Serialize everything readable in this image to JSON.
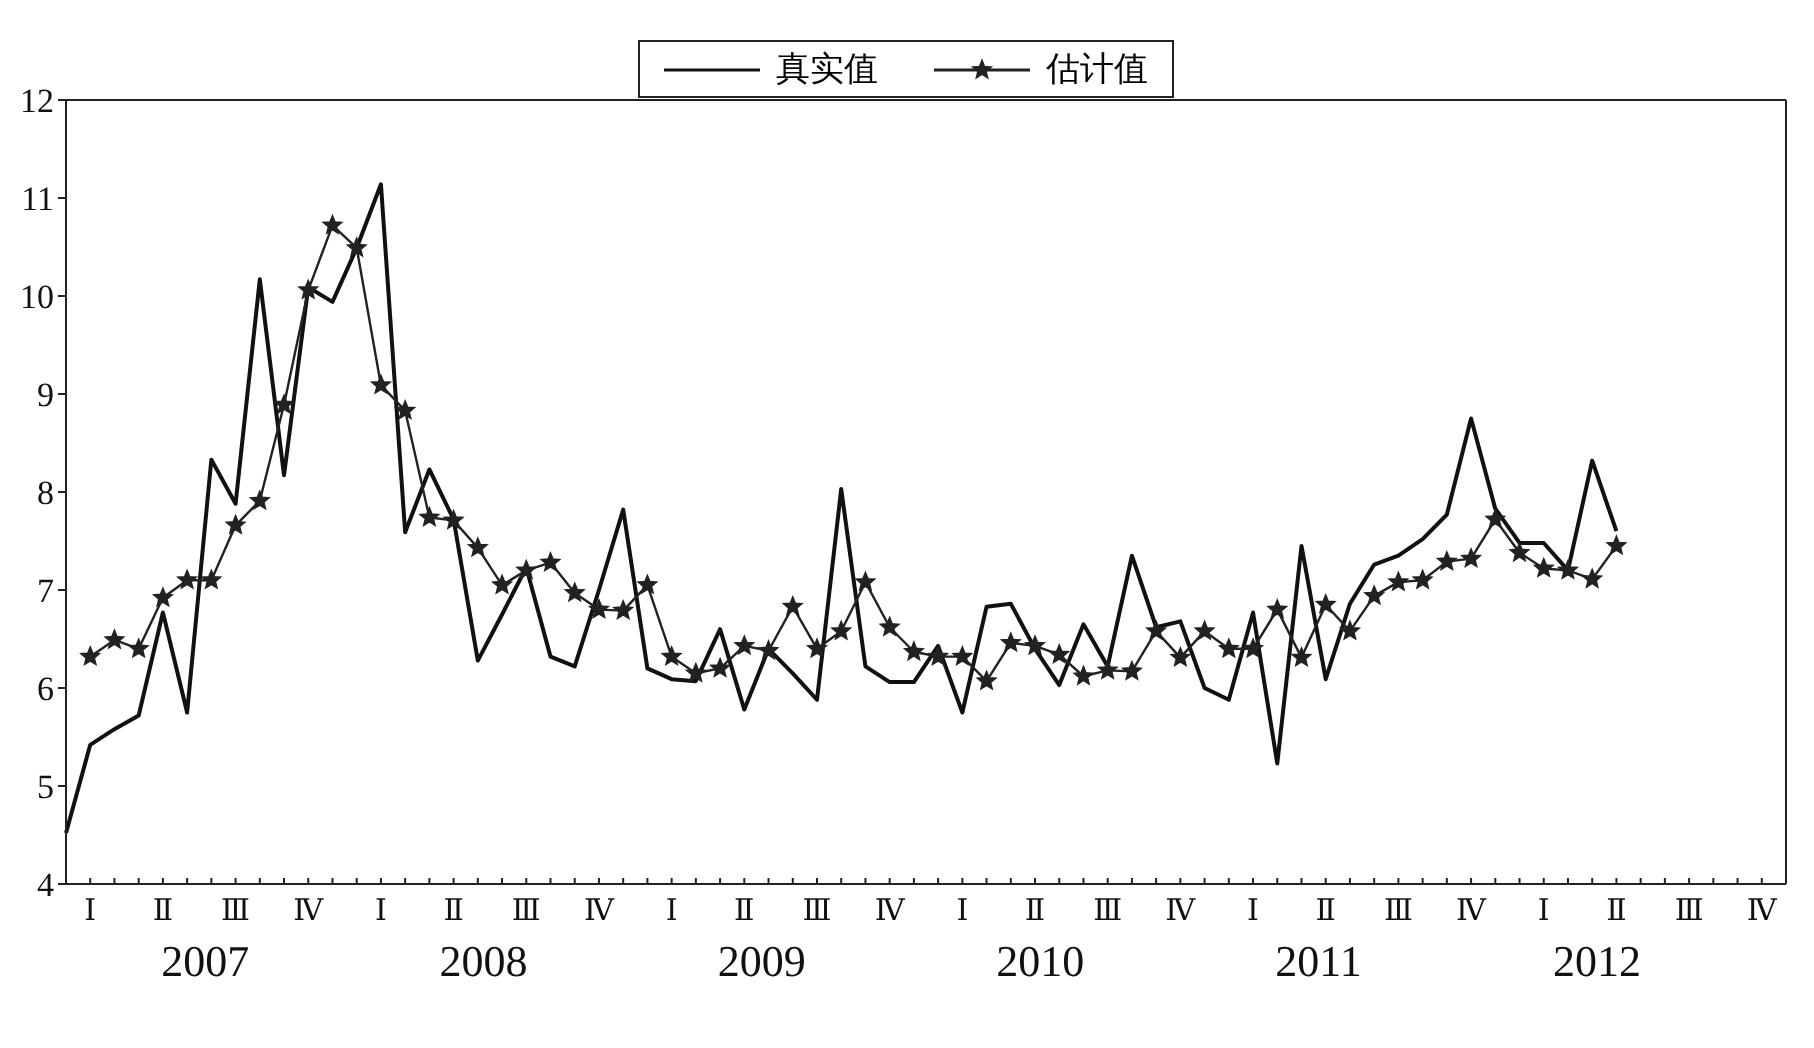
{
  "chart_data": {
    "type": "line",
    "categories": [
      null,
      "Ⅰ",
      null,
      null,
      "Ⅱ",
      null,
      null,
      "Ⅲ",
      null,
      null,
      "Ⅳ",
      null,
      null,
      "Ⅰ",
      null,
      null,
      "Ⅱ",
      null,
      null,
      "Ⅲ",
      null,
      null,
      "Ⅳ",
      null,
      null,
      "Ⅰ",
      null,
      null,
      "Ⅱ",
      null,
      null,
      "Ⅲ",
      null,
      null,
      "Ⅳ",
      null,
      null,
      "Ⅰ",
      null,
      null,
      "Ⅱ",
      null,
      null,
      "Ⅲ",
      null,
      null,
      "Ⅳ",
      null,
      null,
      "Ⅰ",
      null,
      null,
      "Ⅱ",
      null,
      null,
      "Ⅲ",
      null,
      null,
      "Ⅳ",
      null,
      null,
      "Ⅰ",
      null,
      null,
      "Ⅱ",
      null,
      null,
      "Ⅲ",
      null,
      null,
      "Ⅳ",
      null
    ],
    "series": [
      {
        "name": "真实值",
        "color": "#111111",
        "marker": "none",
        "values": [
          4.52,
          5.42,
          5.58,
          5.72,
          6.77,
          5.75,
          8.33,
          7.88,
          10.17,
          8.17,
          10.09,
          9.94,
          10.49,
          11.14,
          7.59,
          8.23,
          7.72,
          6.28,
          6.75,
          7.23,
          6.32,
          6.22,
          7.0,
          7.82,
          6.2,
          6.09,
          6.07,
          6.6,
          5.78,
          6.4,
          6.15,
          5.88,
          8.03,
          6.22,
          6.06,
          6.06,
          6.43,
          5.75,
          6.83,
          6.86,
          6.4,
          6.03,
          6.65,
          6.22,
          7.35,
          6.62,
          6.68,
          6.0,
          5.88,
          6.77,
          5.23,
          7.45,
          6.09,
          6.86,
          7.26,
          7.35,
          7.52,
          7.77,
          8.75,
          7.83,
          7.48,
          7.48,
          7.2,
          8.32,
          7.6,
          null,
          null,
          null,
          null,
          null,
          null,
          null
        ]
      },
      {
        "name": "估计值",
        "color": "#222222",
        "marker": "star",
        "values": [
          null,
          6.32,
          6.49,
          6.4,
          6.92,
          7.1,
          7.1,
          7.66,
          7.91,
          8.89,
          10.06,
          10.72,
          10.49,
          9.09,
          8.83,
          7.74,
          7.71,
          7.43,
          7.05,
          7.2,
          7.28,
          6.97,
          6.8,
          6.79,
          7.05,
          6.32,
          6.15,
          6.2,
          6.43,
          6.38,
          6.83,
          6.4,
          6.58,
          7.08,
          6.62,
          6.37,
          6.32,
          6.32,
          6.07,
          6.46,
          6.43,
          6.34,
          6.12,
          6.18,
          6.17,
          6.58,
          6.31,
          6.58,
          6.4,
          6.4,
          6.8,
          6.31,
          6.85,
          6.58,
          6.94,
          7.08,
          7.1,
          7.29,
          7.32,
          7.72,
          7.38,
          7.22,
          7.2,
          7.11,
          7.45,
          null,
          null,
          null,
          null,
          null,
          null,
          null
        ]
      }
    ],
    "ylim": [
      4,
      12
    ],
    "yticks": [
      4,
      5,
      6,
      7,
      8,
      9,
      10,
      11,
      12
    ],
    "annotations": [
      "2007",
      "2008",
      "2009",
      "2010",
      "2011",
      "2012"
    ],
    "legend": "top"
  }
}
